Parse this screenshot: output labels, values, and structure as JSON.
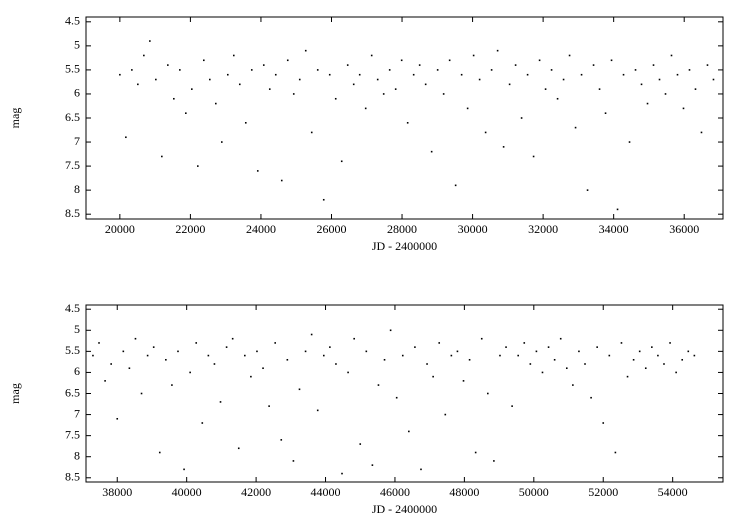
{
  "chart_data": [
    {
      "type": "scatter",
      "x_label": "JD - 2400000",
      "y_label": "mag",
      "xlim": [
        19040,
        37100
      ],
      "ylim": [
        4.4,
        8.6
      ],
      "y_inverted": true,
      "xticks": [
        20000,
        22000,
        24000,
        26000,
        28000,
        30000,
        32000,
        34000,
        36000
      ],
      "yticks": [
        4.5,
        5,
        5.5,
        6,
        6.5,
        7,
        7.5,
        8,
        8.5
      ],
      "series": [
        {
          "color": "#000000",
          "x": [
            20000,
            20170,
            20340,
            20510,
            20680,
            20850,
            21020,
            21190,
            21360,
            21530,
            21700,
            21870,
            22040,
            22210,
            22380,
            22550,
            22720,
            22890,
            23060,
            23230,
            23400,
            23570,
            23740,
            23910,
            24080,
            24250,
            24420,
            24590,
            24760,
            24930,
            25100,
            25270,
            25440,
            25610,
            25780,
            25950,
            26120,
            26290,
            26460,
            26630,
            26800,
            26970,
            27140,
            27310,
            27480,
            27650,
            27820,
            27990,
            28160,
            28330,
            28500,
            28670,
            28840,
            29010,
            29180,
            29350,
            29520,
            29690,
            29860,
            30030,
            30200,
            30370,
            30540,
            30710,
            30880,
            31050,
            31220,
            31390,
            31560,
            31730,
            31900,
            32070,
            32240,
            32410,
            32580,
            32750,
            32920,
            33090,
            33260,
            33430,
            33600,
            33770,
            33940,
            34110,
            34280,
            34450,
            34620,
            34790,
            34960,
            35130,
            35300,
            35470,
            35640,
            35810,
            35980,
            36150,
            36320,
            36490,
            36660,
            36830
          ],
          "values": [
            5.6,
            6.9,
            5.5,
            5.8,
            5.2,
            4.9,
            5.7,
            7.3,
            5.4,
            6.1,
            5.5,
            6.4,
            5.9,
            7.5,
            5.3,
            5.7,
            6.2,
            7.0,
            5.6,
            5.2,
            5.8,
            6.6,
            5.5,
            7.6,
            5.4,
            5.9,
            5.6,
            7.8,
            5.3,
            6.0,
            5.7,
            5.1,
            6.8,
            5.5,
            8.2,
            5.6,
            6.1,
            7.4,
            5.4,
            5.8,
            5.6,
            6.3,
            5.2,
            5.7,
            6.0,
            5.5,
            5.9,
            5.3,
            6.6,
            5.6,
            5.4,
            5.8,
            7.2,
            5.5,
            6.0,
            5.3,
            7.9,
            5.6,
            6.3,
            5.2,
            5.7,
            6.8,
            5.5,
            5.1,
            7.1,
            5.8,
            5.4,
            6.5,
            5.6,
            7.3,
            5.3,
            5.9,
            5.5,
            6.1,
            5.7,
            5.2,
            6.7,
            5.6,
            8.0,
            5.4,
            5.9,
            6.4,
            5.3,
            8.4,
            5.6,
            7.0,
            5.5,
            5.8,
            6.2,
            5.4,
            5.7,
            6.0,
            5.2,
            5.6,
            6.3,
            5.5,
            5.9,
            6.8,
            5.4,
            5.7
          ]
        }
      ]
    },
    {
      "type": "scatter",
      "x_label": "JD - 2400000",
      "y_label": "mag",
      "xlim": [
        37100,
        55450
      ],
      "ylim": [
        4.4,
        8.6
      ],
      "y_inverted": true,
      "xticks": [
        38000,
        40000,
        42000,
        44000,
        46000,
        48000,
        50000,
        52000,
        54000
      ],
      "yticks": [
        4.5,
        5,
        5.5,
        6,
        6.5,
        7,
        7.5,
        8,
        8.5
      ],
      "series": [
        {
          "color": "#000000",
          "x": [
            37300,
            37475,
            37650,
            37825,
            38000,
            38175,
            38350,
            38525,
            38700,
            38875,
            39050,
            39225,
            39400,
            39575,
            39750,
            39925,
            40100,
            40275,
            40450,
            40625,
            40800,
            40975,
            41150,
            41325,
            41500,
            41675,
            41850,
            42025,
            42200,
            42375,
            42550,
            42725,
            42900,
            43075,
            43250,
            43425,
            43600,
            43775,
            43950,
            44125,
            44300,
            44475,
            44650,
            44825,
            45000,
            45175,
            45350,
            45525,
            45700,
            45875,
            46050,
            46225,
            46400,
            46575,
            46750,
            46925,
            47100,
            47275,
            47450,
            47625,
            47800,
            47975,
            48150,
            48325,
            48500,
            48675,
            48850,
            49025,
            49200,
            49375,
            49550,
            49725,
            49900,
            50075,
            50250,
            50425,
            50600,
            50775,
            50950,
            51125,
            51300,
            51475,
            51650,
            51825,
            52000,
            52175,
            52350,
            52525,
            52700,
            52875,
            53050,
            53225,
            53400,
            53575,
            53750,
            53925,
            54100,
            54275,
            54450,
            54625
          ],
          "values": [
            5.6,
            5.3,
            6.2,
            5.8,
            7.1,
            5.5,
            5.9,
            5.2,
            6.5,
            5.6,
            5.4,
            7.9,
            5.7,
            6.3,
            5.5,
            8.3,
            6.0,
            5.3,
            7.2,
            5.6,
            5.8,
            6.7,
            5.4,
            5.2,
            7.8,
            5.6,
            6.1,
            5.5,
            5.9,
            6.8,
            5.3,
            7.6,
            5.7,
            8.1,
            6.4,
            5.5,
            5.1,
            6.9,
            5.6,
            5.4,
            5.8,
            8.4,
            6.0,
            5.2,
            7.7,
            5.5,
            8.2,
            6.3,
            5.7,
            5.0,
            6.6,
            5.6,
            7.4,
            5.4,
            8.3,
            5.8,
            6.1,
            5.3,
            7.0,
            5.6,
            5.5,
            6.2,
            5.7,
            7.9,
            5.2,
            6.5,
            8.1,
            5.6,
            5.4,
            6.8,
            5.6,
            5.3,
            5.8,
            5.5,
            6.0,
            5.4,
            5.7,
            5.2,
            5.9,
            6.3,
            5.5,
            5.8,
            6.6,
            5.4,
            7.2,
            5.6,
            7.9,
            5.3,
            6.1,
            5.7,
            5.5,
            5.9,
            5.4,
            5.6,
            5.8,
            5.3,
            6.0,
            5.7,
            5.5,
            5.6
          ]
        }
      ]
    }
  ]
}
